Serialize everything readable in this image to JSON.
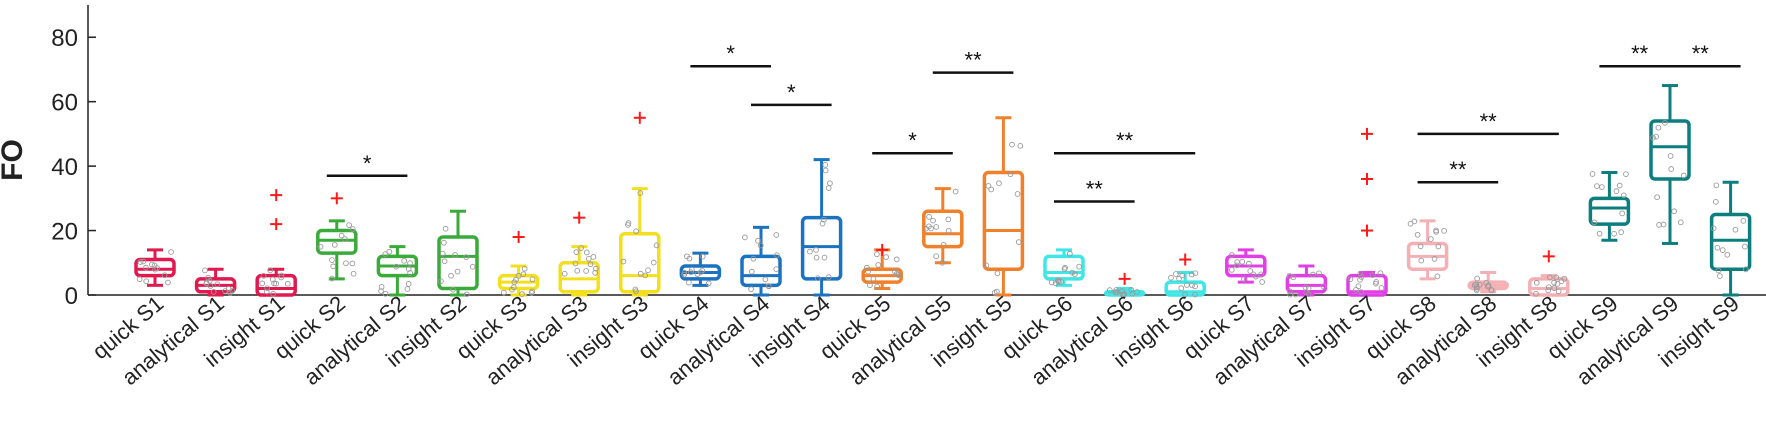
{
  "chart_data": {
    "type": "box",
    "title": "",
    "xlabel": "",
    "ylabel": "FO",
    "ylim": [
      0,
      90
    ],
    "yticks": [
      "0",
      "20",
      "40",
      "60",
      "80"
    ],
    "grid": false,
    "categories": [
      "quick S1",
      "analytical S1",
      "insight S1",
      "quick S2",
      "analytical S2",
      "insight S2",
      "quick S3",
      "analytical S3",
      "insight S3",
      "quick S4",
      "analytical S4",
      "insight S4",
      "quick S5",
      "analytical S5",
      "insight S5",
      "quick S6",
      "analytical S6",
      "insight S6",
      "quick S7",
      "analytical S7",
      "insight S7",
      "quick S8",
      "analytical S8",
      "insight S8",
      "quick S9",
      "analytical S9",
      "insight S9"
    ],
    "colors": [
      "#e0194f",
      "#e0194f",
      "#e0194f",
      "#3aaa3a",
      "#3aaa3a",
      "#3aaa3a",
      "#f2df1e",
      "#f2df1e",
      "#f2df1e",
      "#1a72c0",
      "#1a72c0",
      "#1a72c0",
      "#f0802a",
      "#f0802a",
      "#f0802a",
      "#3ee6e6",
      "#3ee6e6",
      "#3ee6e6",
      "#e23ee6",
      "#e23ee6",
      "#e23ee6",
      "#f4b0b4",
      "#f4b0b4",
      "#f4b0b4",
      "#0c7e7e",
      "#0c7e7e",
      "#0c7e7e"
    ],
    "boxes": [
      {
        "min": 3,
        "q1": 6,
        "median": 8,
        "q3": 11,
        "max": 14,
        "outliers": []
      },
      {
        "min": 0,
        "q1": 1,
        "median": 3,
        "q3": 5,
        "max": 8,
        "outliers": []
      },
      {
        "min": 0,
        "q1": 0,
        "median": 2,
        "q3": 6,
        "max": 8,
        "outliers": [
          22,
          31
        ]
      },
      {
        "min": 5,
        "q1": 13,
        "median": 17,
        "q3": 20,
        "max": 23,
        "outliers": [
          30
        ]
      },
      {
        "min": 0,
        "q1": 6,
        "median": 9,
        "q3": 12,
        "max": 15,
        "outliers": []
      },
      {
        "min": 0,
        "q1": 2,
        "median": 12,
        "q3": 18,
        "max": 26,
        "outliers": []
      },
      {
        "min": 0,
        "q1": 2,
        "median": 4,
        "q3": 6,
        "max": 9,
        "outliers": [
          18
        ]
      },
      {
        "min": 0,
        "q1": 1,
        "median": 5,
        "q3": 10,
        "max": 15,
        "outliers": [
          24
        ]
      },
      {
        "min": 0,
        "q1": 1,
        "median": 6,
        "q3": 19,
        "max": 33,
        "outliers": [
          55
        ]
      },
      {
        "min": 3,
        "q1": 5,
        "median": 7,
        "q3": 9,
        "max": 13,
        "outliers": []
      },
      {
        "min": 0,
        "q1": 3,
        "median": 6,
        "q3": 12,
        "max": 21,
        "outliers": []
      },
      {
        "min": 0,
        "q1": 5,
        "median": 15,
        "q3": 24,
        "max": 42,
        "outliers": []
      },
      {
        "min": 2,
        "q1": 4,
        "median": 6,
        "q3": 8,
        "max": 14,
        "outliers": [
          14
        ]
      },
      {
        "min": 10,
        "q1": 15,
        "median": 19,
        "q3": 26,
        "max": 33,
        "outliers": []
      },
      {
        "min": 0,
        "q1": 8,
        "median": 20,
        "q3": 38,
        "max": 55,
        "outliers": []
      },
      {
        "min": 3,
        "q1": 5,
        "median": 7,
        "q3": 12,
        "max": 14,
        "outliers": []
      },
      {
        "min": 0,
        "q1": 0,
        "median": 1,
        "q3": 1,
        "max": 2,
        "outliers": [
          5
        ]
      },
      {
        "min": 0,
        "q1": 0,
        "median": 1,
        "q3": 4,
        "max": 7,
        "outliers": [
          11
        ]
      },
      {
        "min": 4,
        "q1": 6,
        "median": 9,
        "q3": 12,
        "max": 14,
        "outliers": []
      },
      {
        "min": 0,
        "q1": 1,
        "median": 3,
        "q3": 6,
        "max": 9,
        "outliers": []
      },
      {
        "min": 0,
        "q1": 0,
        "median": 1,
        "q3": 6,
        "max": 7,
        "outliers": [
          20,
          36,
          50
        ]
      },
      {
        "min": 5,
        "q1": 8,
        "median": 12,
        "q3": 16,
        "max": 23,
        "outliers": []
      },
      {
        "min": 1,
        "q1": 2,
        "median": 3,
        "q3": 4,
        "max": 7,
        "outliers": []
      },
      {
        "min": 0,
        "q1": 0,
        "median": 2,
        "q3": 5,
        "max": 6,
        "outliers": [
          12
        ]
      },
      {
        "min": 17,
        "q1": 22,
        "median": 27,
        "q3": 30,
        "max": 38,
        "outliers": []
      },
      {
        "min": 16,
        "q1": 36,
        "median": 46,
        "q3": 54,
        "max": 65,
        "outliers": []
      },
      {
        "min": 0,
        "q1": 8,
        "median": 17,
        "q3": 25,
        "max": 35,
        "outliers": []
      }
    ],
    "significance": [
      {
        "from": 3,
        "to": 4,
        "y": 37,
        "label": "*"
      },
      {
        "from": 9,
        "to": 10,
        "y": 71,
        "label": "*"
      },
      {
        "from": 10,
        "to": 11,
        "y": 59,
        "label": "*"
      },
      {
        "from": 12,
        "to": 13,
        "y": 44,
        "label": "*"
      },
      {
        "from": 13,
        "to": 14,
        "y": 69,
        "label": "**"
      },
      {
        "from": 15,
        "to": 16,
        "y": 29,
        "label": "**"
      },
      {
        "from": 15,
        "to": 17,
        "y": 44,
        "label": "**"
      },
      {
        "from": 21,
        "to": 22,
        "y": 35,
        "label": "**"
      },
      {
        "from": 21,
        "to": 23,
        "y": 50,
        "label": "**"
      },
      {
        "from": 24,
        "to": 25,
        "y": 71,
        "label": "**"
      },
      {
        "from": 25,
        "to": 26,
        "y": 71,
        "label": "**"
      }
    ]
  }
}
